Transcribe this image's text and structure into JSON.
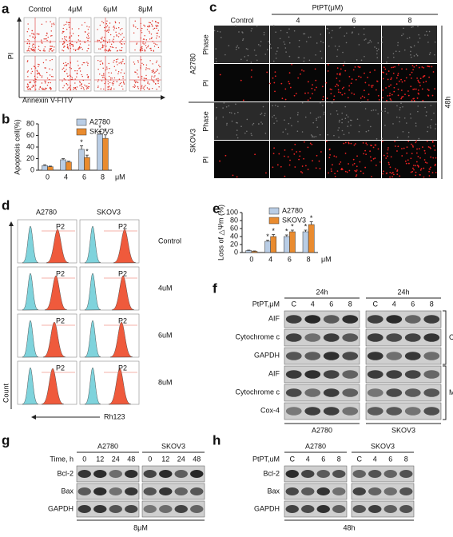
{
  "panel_labels": [
    "a",
    "b",
    "c",
    "d",
    "e",
    "f",
    "g",
    "h"
  ],
  "panel_a": {
    "columns": [
      "Control",
      "4μM",
      "6μM",
      "8μM"
    ],
    "y_label": "PI",
    "x_label": "Annexin V-FITV"
  },
  "chart_data": [
    {
      "type": "bar",
      "y_label": "Apoptosis cell(%)",
      "categories": [
        "0",
        "4",
        "6",
        "8"
      ],
      "x_unit": "μM",
      "ylim": [
        0,
        80
      ],
      "yticks": [
        0,
        20,
        40,
        60,
        80
      ],
      "legend": "top-right",
      "series": [
        {
          "name": "A2780",
          "color": "#b9cde5",
          "values": [
            8,
            18,
            36,
            62
          ],
          "errors": [
            1.5,
            2,
            6,
            5
          ],
          "annotations": [
            null,
            null,
            "*",
            "*"
          ]
        },
        {
          "name": "SKOV3",
          "color": "#e98b2f",
          "values": [
            6,
            14,
            22,
            55
          ],
          "errors": [
            1,
            1.5,
            4,
            6
          ],
          "annotations": [
            null,
            null,
            "*",
            "*"
          ]
        }
      ]
    },
    {
      "type": "bar",
      "y_label": "Loss of △Ψm (%)",
      "categories": [
        "0",
        "4",
        "6",
        "8"
      ],
      "x_unit": "μM",
      "ylim": [
        0,
        100
      ],
      "yticks": [
        0,
        20,
        40,
        60,
        80,
        100
      ],
      "legend": "top-left",
      "series": [
        {
          "name": "A2780",
          "color": "#b9cde5",
          "values": [
            5,
            28,
            40,
            52
          ],
          "errors": [
            1,
            3,
            4,
            4
          ],
          "annotations": [
            null,
            "*",
            "*",
            "*"
          ]
        },
        {
          "name": "SKOV3",
          "color": "#e98b2f",
          "values": [
            3,
            40,
            52,
            70
          ],
          "errors": [
            1,
            5,
            4,
            7
          ],
          "annotations": [
            null,
            "*",
            "*",
            "*"
          ]
        }
      ]
    }
  ],
  "panel_c": {
    "header": "PtPT(μM)",
    "columns": [
      "Control",
      "4",
      "6",
      "8"
    ],
    "groups": [
      {
        "name": "A2780",
        "rows": [
          "Phase",
          "PI"
        ]
      },
      {
        "name": "SKOV3",
        "rows": [
          "Phase",
          "PI"
        ]
      }
    ],
    "time": "48h"
  },
  "panel_d": {
    "columns": [
      "A2780",
      "SKOV3"
    ],
    "rows": [
      "Control",
      "4uM",
      "6uM",
      "8uM"
    ],
    "gate_label": "P2",
    "y_label": "Count",
    "x_label": "Rh123"
  },
  "panel_f": {
    "times": [
      "24h",
      "24h"
    ],
    "dose_label": "PtPT,μM",
    "lanes": [
      "C",
      "4",
      "6",
      "8"
    ],
    "rows": [
      "AIF",
      "Cytochrome c",
      "GAPDH",
      "AIF",
      "Cytochrome c",
      "Cox-4"
    ],
    "fractions": [
      "C",
      "M"
    ],
    "cell_lines": [
      "A2780",
      "SKOV3"
    ]
  },
  "panel_g": {
    "cell_lines": [
      "A2780",
      "SKOV3"
    ],
    "lane_label": "Time, h",
    "lanes": [
      "0",
      "12",
      "24",
      "48"
    ],
    "rows": [
      "Bcl-2",
      "Bax",
      "GAPDH"
    ],
    "condition": "8μM"
  },
  "panel_h": {
    "cell_lines": [
      "A2780",
      "SKOV3"
    ],
    "lane_label": "PtPT,uM",
    "lanes": [
      "C",
      "4",
      "6",
      "8"
    ],
    "rows": [
      "Bcl-2",
      "Bax",
      "GAPDH"
    ],
    "condition": "48h"
  }
}
